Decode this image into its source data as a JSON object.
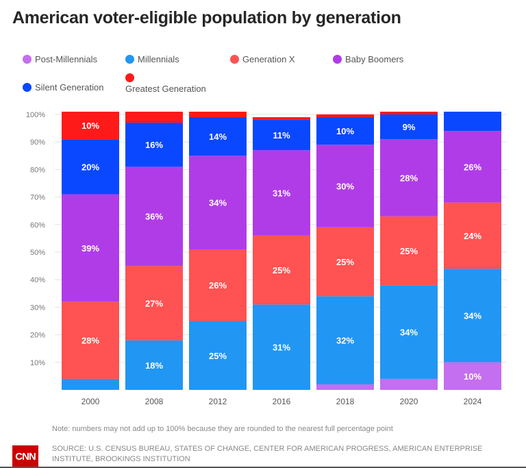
{
  "title": "American voter-eligible population by generation",
  "chart_data": {
    "type": "bar",
    "stacked": true,
    "categories": [
      "2000",
      "2008",
      "2012",
      "2016",
      "2018",
      "2020",
      "2024"
    ],
    "series": [
      {
        "name": "Post-Millennials",
        "color": "#c46ef0",
        "values": [
          0,
          0,
          0,
          0,
          2,
          4,
          10
        ]
      },
      {
        "name": "Millennials",
        "color": "#2196f3",
        "values": [
          4,
          18,
          25,
          31,
          32,
          34,
          34
        ]
      },
      {
        "name": "Generation X",
        "color": "#ff5252",
        "values": [
          28,
          27,
          26,
          25,
          25,
          25,
          24
        ]
      },
      {
        "name": "Baby Boomers",
        "color": "#b03ce8",
        "values": [
          39,
          36,
          34,
          31,
          30,
          28,
          26
        ]
      },
      {
        "name": "Silent Generation",
        "color": "#0a48ff",
        "values": [
          20,
          16,
          14,
          11,
          10,
          9,
          7
        ]
      },
      {
        "name": "Greatest Generation",
        "color": "#ff1a1a",
        "values": [
          10,
          4,
          2,
          1,
          1,
          1,
          0
        ]
      }
    ],
    "yticks": [
      "10%",
      "20%",
      "30%",
      "40%",
      "50%",
      "60%",
      "70%",
      "80%",
      "90%",
      "100%"
    ],
    "ylim": [
      0,
      100
    ],
    "grid": true,
    "legend": "top"
  },
  "note": "Note: numbers may not add up to 100% because they are rounded to the nearest full percentage point",
  "source": "SOURCE: U.S. CENSUS BUREAU, STATES OF CHANGE, CENTER FOR AMERICAN PROGRESS, AMERICAN ENTERPRISE INSTITUTE, BROOKINGS INSTITUTION",
  "logo": "CNN"
}
